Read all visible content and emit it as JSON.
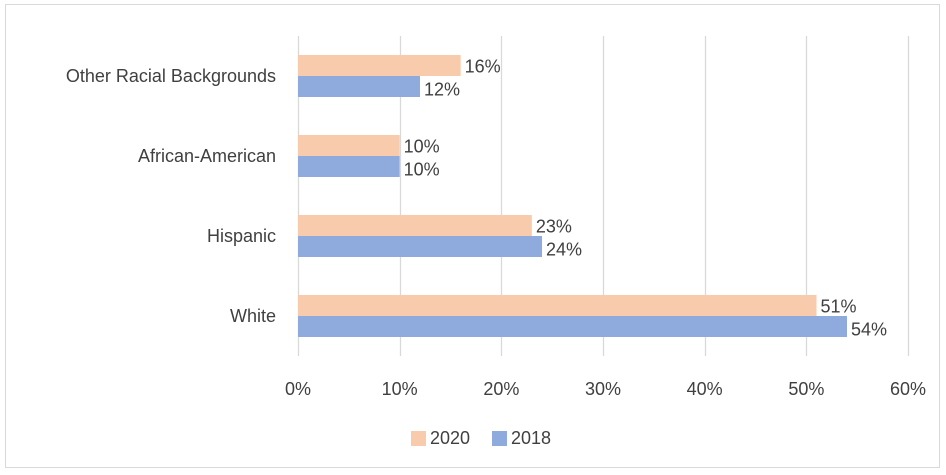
{
  "chart_data": {
    "type": "bar",
    "orientation": "horizontal",
    "categories": [
      "White",
      "Hispanic",
      "African-American",
      "Other Racial Backgrounds"
    ],
    "series": [
      {
        "name": "2020",
        "values": [
          51,
          23,
          10,
          16
        ],
        "labels": [
          "51%",
          "23%",
          "10%",
          "16%"
        ],
        "color": "#f8cbad"
      },
      {
        "name": "2018",
        "values": [
          54,
          24,
          10,
          12
        ],
        "labels": [
          "54%",
          "24%",
          "10%",
          "12%"
        ],
        "color": "#8faadc"
      }
    ],
    "xticks": [
      0,
      10,
      20,
      30,
      40,
      50,
      60
    ],
    "xtick_labels": [
      "0%",
      "10%",
      "20%",
      "30%",
      "40%",
      "50%",
      "60%"
    ],
    "xlim": [
      0,
      60
    ],
    "grid": "vertical",
    "legend_position": "bottom",
    "title": "",
    "xlabel": "",
    "ylabel": ""
  }
}
